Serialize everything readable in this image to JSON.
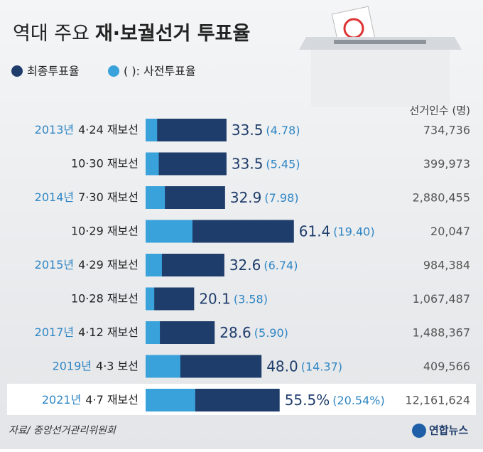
{
  "chart_data": {
    "type": "bar",
    "orientation": "horizontal",
    "title_prefix": "역대 주요",
    "title": "재·보궐선거 투표율",
    "years": [
      "2013년",
      null,
      "2014년",
      null,
      "2015년",
      null,
      "2017년",
      "2019년",
      "2021년"
    ],
    "categories": [
      "4·24 재보선",
      "10·30 재보선",
      "7·30 재보선",
      "10·29 재보선",
      "4·29 재보선",
      "10·28 재보선",
      "4·12 재보선",
      "4·3 보선",
      "4·7 재보선"
    ],
    "series": [
      {
        "name": "최종투표율",
        "color": "#1f3d6b",
        "values": [
          33.5,
          33.5,
          32.9,
          61.4,
          32.6,
          20.1,
          28.6,
          48.0,
          55.5
        ],
        "value_labels": [
          "33.5",
          "33.5",
          "32.9",
          "61.4",
          "32.6",
          "20.1",
          "28.6",
          "48.0",
          "55.5%"
        ]
      },
      {
        "name": "( ): 사전투표율",
        "color": "#3aa2db",
        "values": [
          4.78,
          5.45,
          7.98,
          19.4,
          6.74,
          3.58,
          5.9,
          14.37,
          20.54
        ],
        "value_labels": [
          "(4.78)",
          "(5.45)",
          "(7.98)",
          "(19.40)",
          "(6.74)",
          "(3.58)",
          "(5.90)",
          "(14.37)",
          "(20.54%)"
        ]
      }
    ],
    "xlim": [
      0,
      100
    ],
    "voters_title": "선거인수 (명)",
    "voters": [
      "734,736",
      "399,973",
      "2,880,455",
      "20,047",
      "984,384",
      "1,067,487",
      "1,488,367",
      "409,566",
      "12,161,624"
    ],
    "highlight_last": true,
    "source": "자료/ 중앙선거관리위원회",
    "credit": "연합뉴스"
  }
}
